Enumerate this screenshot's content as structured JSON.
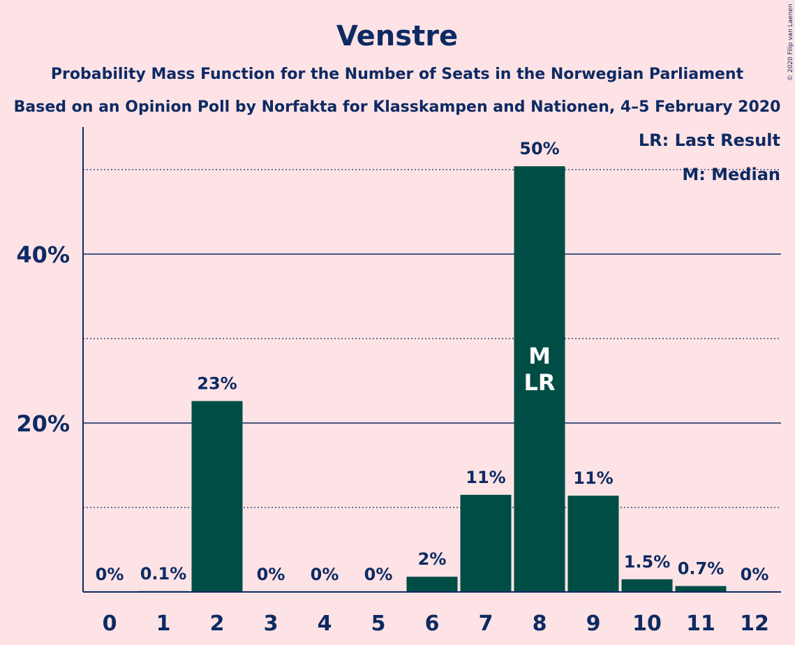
{
  "chart_data": {
    "type": "bar",
    "title": "Venstre",
    "subtitle_1": "Probability Mass Function for the Number of Seats in the Norwegian Parliament",
    "subtitle_2": "Based on an Opinion Poll by Norfakta for Klasskampen and Nationen, 4–5 February 2020",
    "categories": [
      "0",
      "1",
      "2",
      "3",
      "4",
      "5",
      "6",
      "7",
      "8",
      "9",
      "10",
      "11",
      "12"
    ],
    "values": [
      0,
      0.1,
      22.6,
      0,
      0,
      0,
      1.8,
      11.5,
      50.4,
      11.4,
      1.5,
      0.7,
      0
    ],
    "data_labels": [
      "0%",
      "0.1%",
      "23%",
      "0%",
      "0%",
      "0%",
      "2%",
      "11%",
      "50%",
      "11%",
      "1.5%",
      "0.7%",
      "0%"
    ],
    "ylim": [
      0,
      55
    ],
    "yticks": [
      20,
      40
    ],
    "ytick_labels": [
      "20%",
      "40%"
    ],
    "minor_gridlines": [
      10,
      30,
      50
    ],
    "bar_color": "#004D46",
    "text_color": "#0E2A63",
    "background": "#FDE3E5",
    "legend": [
      "LR: Last Result",
      "M: Median"
    ],
    "legend_position": "top-right",
    "annotations": [
      {
        "category": "8",
        "lines": [
          "M",
          "LR"
        ]
      }
    ],
    "copyright": "© 2020 Filip van Laenen"
  }
}
